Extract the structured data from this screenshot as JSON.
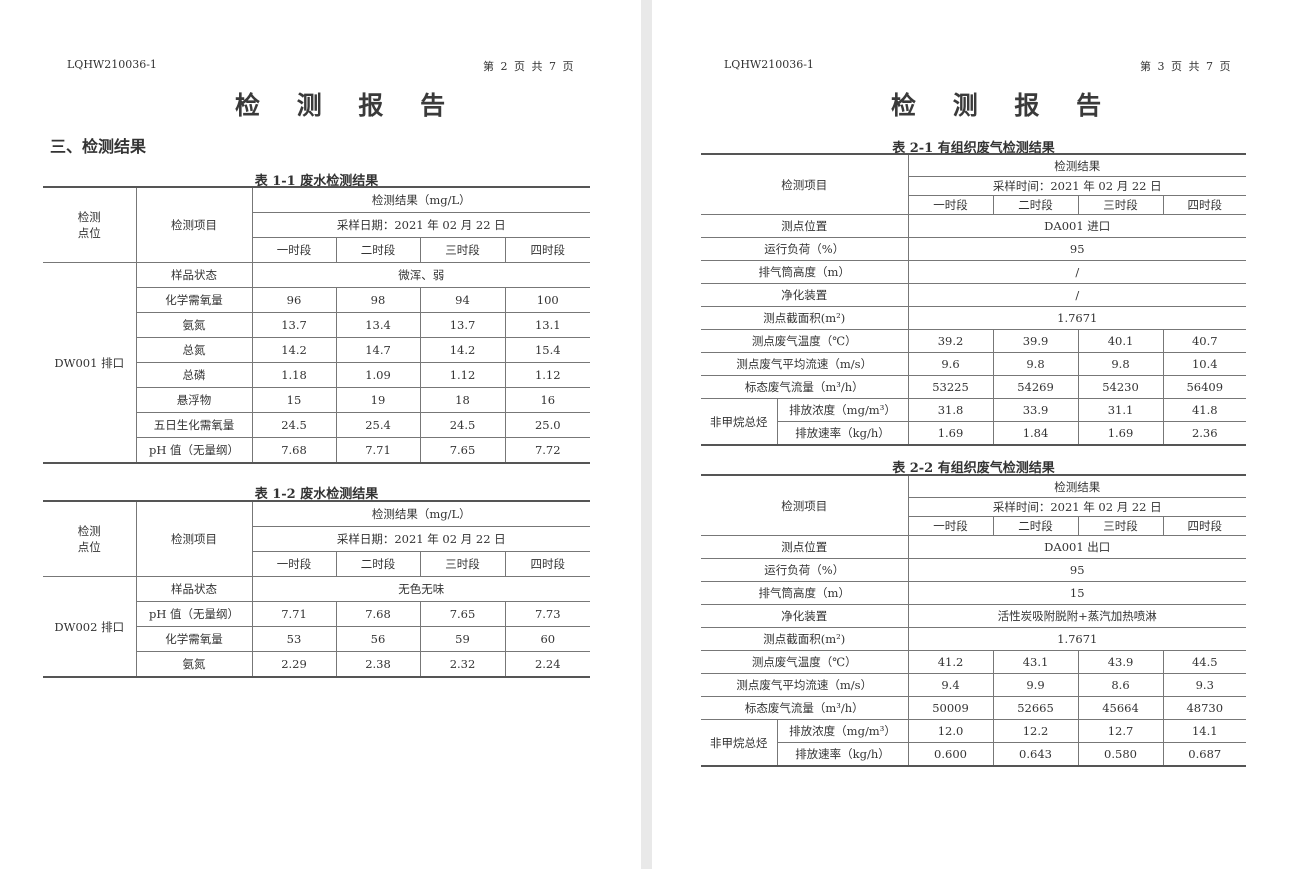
{
  "left": {
    "code": "LQHW210036-1",
    "page": "第 2 页 共 7 页",
    "title": "检 测 报 告",
    "section": "三、检测结果",
    "tables": [
      {
        "caption": "表 1-1  废水检测结果",
        "site_label": "检测点位",
        "item_label": "检测项目",
        "result_label": "检测结果（mg/L）",
        "date_label": "采样日期：2021 年 02 月 22 日",
        "periods": [
          "一时段",
          "二时段",
          "三时段",
          "四时段"
        ],
        "site": "DW001 排口",
        "rows": [
          {
            "item": "样品状态",
            "merged": "微浑、弱"
          },
          {
            "item": "化学需氧量",
            "values": [
              "96",
              "98",
              "94",
              "100"
            ]
          },
          {
            "item": "氨氮",
            "values": [
              "13.7",
              "13.4",
              "13.7",
              "13.1"
            ]
          },
          {
            "item": "总氮",
            "values": [
              "14.2",
              "14.7",
              "14.2",
              "15.4"
            ]
          },
          {
            "item": "总磷",
            "values": [
              "1.18",
              "1.09",
              "1.12",
              "1.12"
            ]
          },
          {
            "item": "悬浮物",
            "values": [
              "15",
              "19",
              "18",
              "16"
            ]
          },
          {
            "item": "五日生化需氧量",
            "values": [
              "24.5",
              "25.4",
              "24.5",
              "25.0"
            ]
          },
          {
            "item": "pH 值（无量纲）",
            "values": [
              "7.68",
              "7.71",
              "7.65",
              "7.72"
            ]
          }
        ]
      },
      {
        "caption": "表 1-2  废水检测结果",
        "site_label": "检测点位",
        "item_label": "检测项目",
        "result_label": "检测结果（mg/L）",
        "date_label": "采样日期：2021 年 02 月 22 日",
        "periods": [
          "一时段",
          "二时段",
          "三时段",
          "四时段"
        ],
        "site": "DW002 排口",
        "rows": [
          {
            "item": "样品状态",
            "merged": "无色无味"
          },
          {
            "item": "pH 值（无量纲）",
            "values": [
              "7.71",
              "7.68",
              "7.65",
              "7.73"
            ]
          },
          {
            "item": "化学需氧量",
            "values": [
              "53",
              "56",
              "59",
              "60"
            ]
          },
          {
            "item": "氨氮",
            "values": [
              "2.29",
              "2.38",
              "2.32",
              "2.24"
            ]
          }
        ]
      }
    ]
  },
  "right": {
    "code": "LQHW210036-1",
    "page": "第 3 页 共 7 页",
    "title": "检 测 报 告",
    "tables": [
      {
        "caption": "表 2-1 有组织废气检测结果",
        "item_label": "检测项目",
        "result_label": "检测结果",
        "date_label": "采样时间：2021 年 02 月 22 日",
        "periods": [
          "一时段",
          "二时段",
          "三时段",
          "四时段"
        ],
        "rows": [
          {
            "item": "测点位置",
            "merged": "DA001 进口"
          },
          {
            "item": "运行负荷（%）",
            "merged": "95"
          },
          {
            "item": "排气筒高度（m）",
            "merged": "/"
          },
          {
            "item": "净化装置",
            "merged": "/"
          },
          {
            "item": "测点截面积(m²)",
            "merged": "1.7671"
          },
          {
            "item": "测点废气温度（℃）",
            "values": [
              "39.2",
              "39.9",
              "40.1",
              "40.7"
            ]
          },
          {
            "item": "测点废气平均流速（m/s）",
            "values": [
              "9.6",
              "9.8",
              "9.8",
              "10.4"
            ]
          },
          {
            "item": "标态废气流量（m³/h）",
            "values": [
              "53225",
              "54269",
              "54230",
              "56409"
            ]
          }
        ],
        "group": {
          "label": "非甲烷总烃",
          "rows": [
            {
              "item": "排放浓度（mg/m³）",
              "values": [
                "31.8",
                "33.9",
                "31.1",
                "41.8"
              ]
            },
            {
              "item": "排放速率（kg/h）",
              "values": [
                "1.69",
                "1.84",
                "1.69",
                "2.36"
              ]
            }
          ]
        }
      },
      {
        "caption": "表 2-2 有组织废气检测结果",
        "item_label": "检测项目",
        "result_label": "检测结果",
        "date_label": "采样时间：2021 年 02 月 22 日",
        "periods": [
          "一时段",
          "二时段",
          "三时段",
          "四时段"
        ],
        "rows": [
          {
            "item": "测点位置",
            "merged": "DA001 出口"
          },
          {
            "item": "运行负荷（%）",
            "merged": "95"
          },
          {
            "item": "排气筒高度（m）",
            "merged": "15"
          },
          {
            "item": "净化装置",
            "merged": "活性炭吸附脱附+蒸汽加热喷淋"
          },
          {
            "item": "测点截面积(m²)",
            "merged": "1.7671"
          },
          {
            "item": "测点废气温度（℃）",
            "values": [
              "41.2",
              "43.1",
              "43.9",
              "44.5"
            ]
          },
          {
            "item": "测点废气平均流速（m/s）",
            "values": [
              "9.4",
              "9.9",
              "8.6",
              "9.3"
            ]
          },
          {
            "item": "标态废气流量（m³/h）",
            "values": [
              "50009",
              "52665",
              "45664",
              "48730"
            ]
          }
        ],
        "group": {
          "label": "非甲烷总烃",
          "rows": [
            {
              "item": "排放浓度（mg/m³）",
              "values": [
                "12.0",
                "12.2",
                "12.7",
                "14.1"
              ]
            },
            {
              "item": "排放速率（kg/h）",
              "values": [
                "0.600",
                "0.643",
                "0.580",
                "0.687"
              ]
            }
          ]
        }
      }
    ]
  }
}
